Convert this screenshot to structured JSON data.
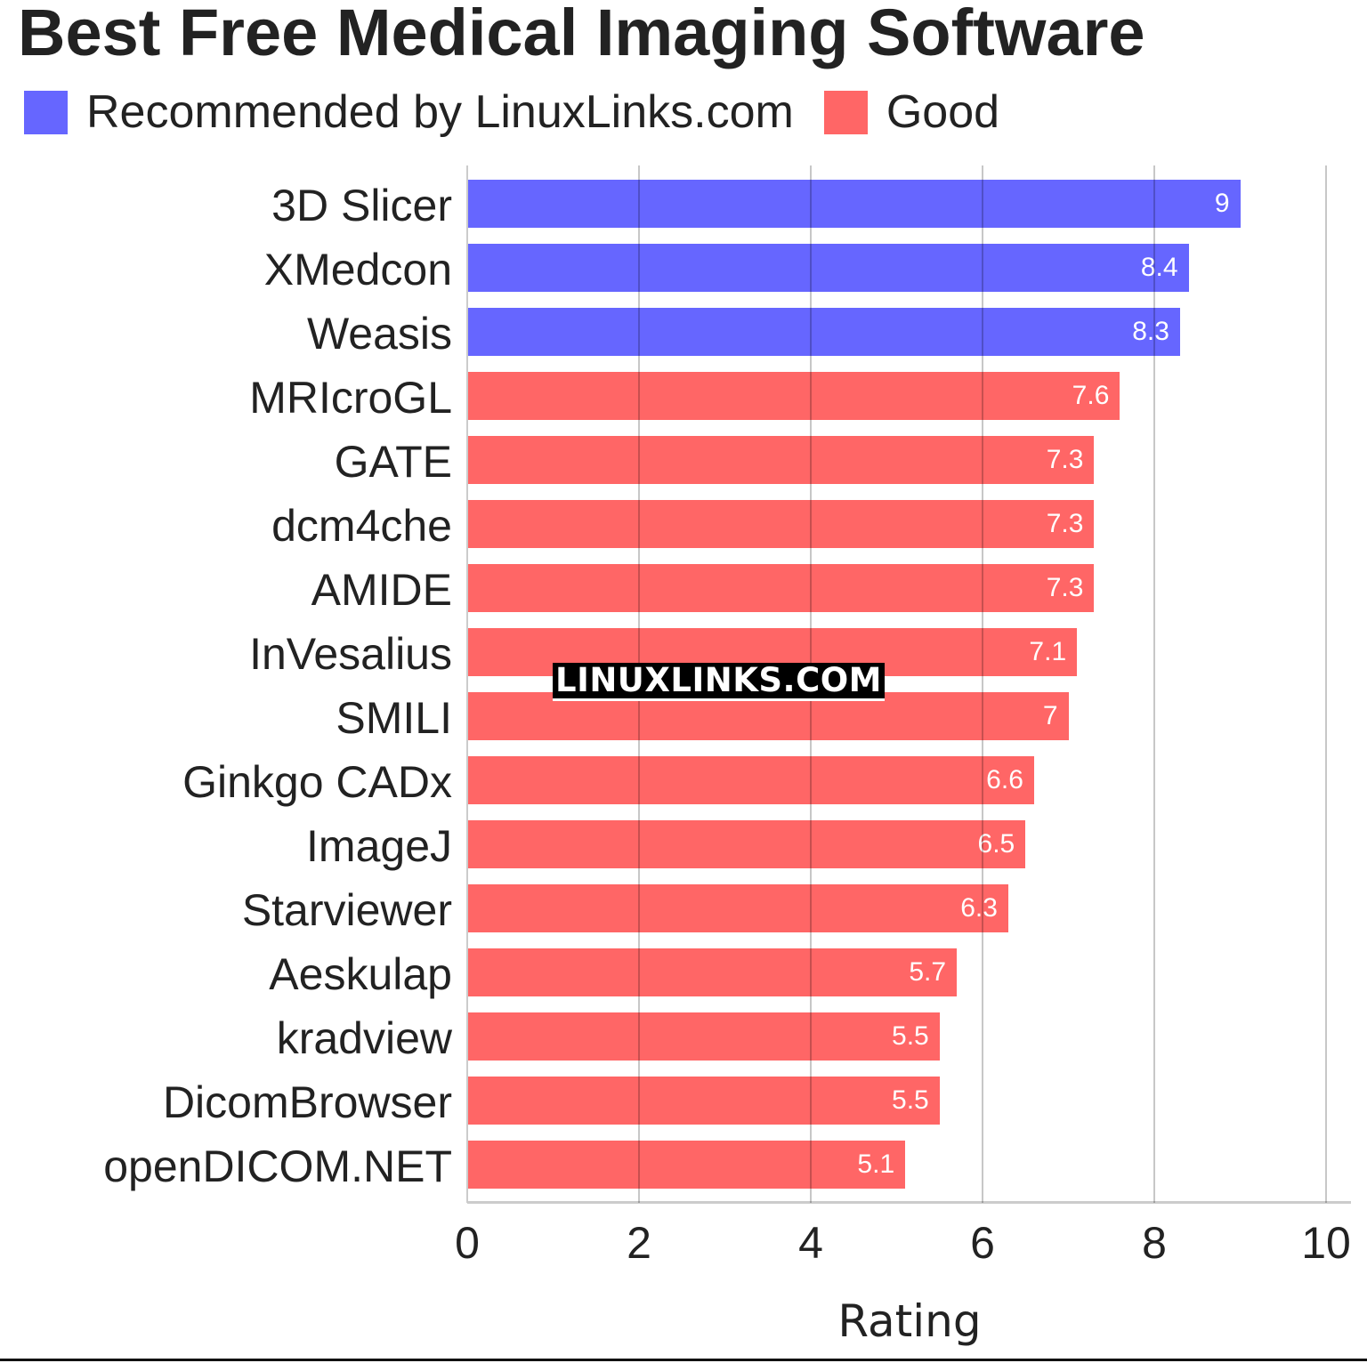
{
  "chart_data": {
    "type": "bar",
    "orientation": "horizontal",
    "title": "Best Free Medical Imaging Software",
    "xlabel": "Rating",
    "ylabel": "",
    "xlim": [
      0,
      10
    ],
    "xticks": [
      "0",
      "2",
      "4",
      "6",
      "8",
      "10"
    ],
    "grid": true,
    "legend": {
      "position": "top-left",
      "entries": [
        {
          "label": "Recommended by LinuxLinks.com",
          "color": "#6666ff"
        },
        {
          "label": "Good",
          "color": "#ff6666"
        }
      ]
    },
    "categories": [
      "3D Slicer",
      "XMedcon",
      "Weasis",
      "MRIcroGL",
      "GATE",
      "dcm4che",
      "AMIDE",
      "InVesalius",
      "SMILI",
      "Ginkgo CADx",
      "ImageJ",
      "Starviewer",
      "Aeskulap",
      "kradview",
      "DicomBrowser",
      "openDICOM.NET"
    ],
    "values": [
      9,
      8.4,
      8.3,
      7.6,
      7.3,
      7.3,
      7.3,
      7.1,
      7,
      6.6,
      6.5,
      6.3,
      5.7,
      5.5,
      5.5,
      5.1
    ],
    "value_labels": [
      "9",
      "8.4",
      "8.3",
      "7.6",
      "7.3",
      "7.3",
      "7.3",
      "7.1",
      "7",
      "6.6",
      "6.5",
      "6.3",
      "5.7",
      "5.5",
      "5.5",
      "5.1"
    ],
    "groups": [
      "Recommended by LinuxLinks.com",
      "Recommended by LinuxLinks.com",
      "Recommended by LinuxLinks.com",
      "Good",
      "Good",
      "Good",
      "Good",
      "Good",
      "Good",
      "Good",
      "Good",
      "Good",
      "Good",
      "Good",
      "Good",
      "Good"
    ],
    "annotations": [
      "LINUXLINKS.COM"
    ]
  },
  "colors": {
    "recommended": "#6666ff",
    "good": "#ff6666"
  },
  "watermark": "LINUXLINKS.COM"
}
